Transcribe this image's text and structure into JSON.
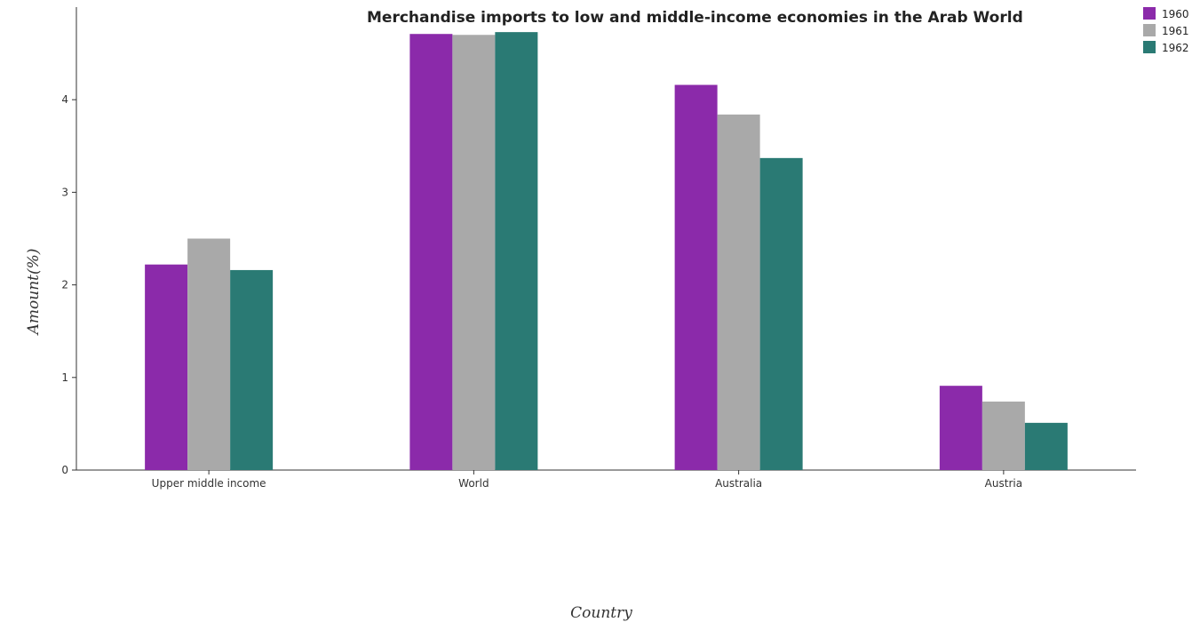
{
  "chart_data": {
    "type": "bar",
    "title": "Merchandise imports to low and middle-income economies in the Arab World",
    "xlabel": "Country",
    "ylabel": "Amount(%)",
    "categories": [
      "Upper middle income",
      "World",
      "Australia",
      "Austria"
    ],
    "series": [
      {
        "name": "1960",
        "color": "#8b2aaa",
        "values": [
          2.22,
          4.71,
          4.16,
          0.91
        ]
      },
      {
        "name": "1961",
        "color": "#a9a9a9",
        "values": [
          2.5,
          4.7,
          3.84,
          0.74
        ]
      },
      {
        "name": "1962",
        "color": "#2a7a74",
        "values": [
          2.16,
          4.73,
          3.37,
          0.51
        ]
      }
    ],
    "ylim": [
      0,
      5
    ],
    "yticks": [
      "0",
      "1",
      "2",
      "3",
      "4"
    ],
    "ytick_values": [
      0,
      1,
      2,
      3,
      4
    ],
    "grid": false,
    "legend_position": "top-right"
  }
}
